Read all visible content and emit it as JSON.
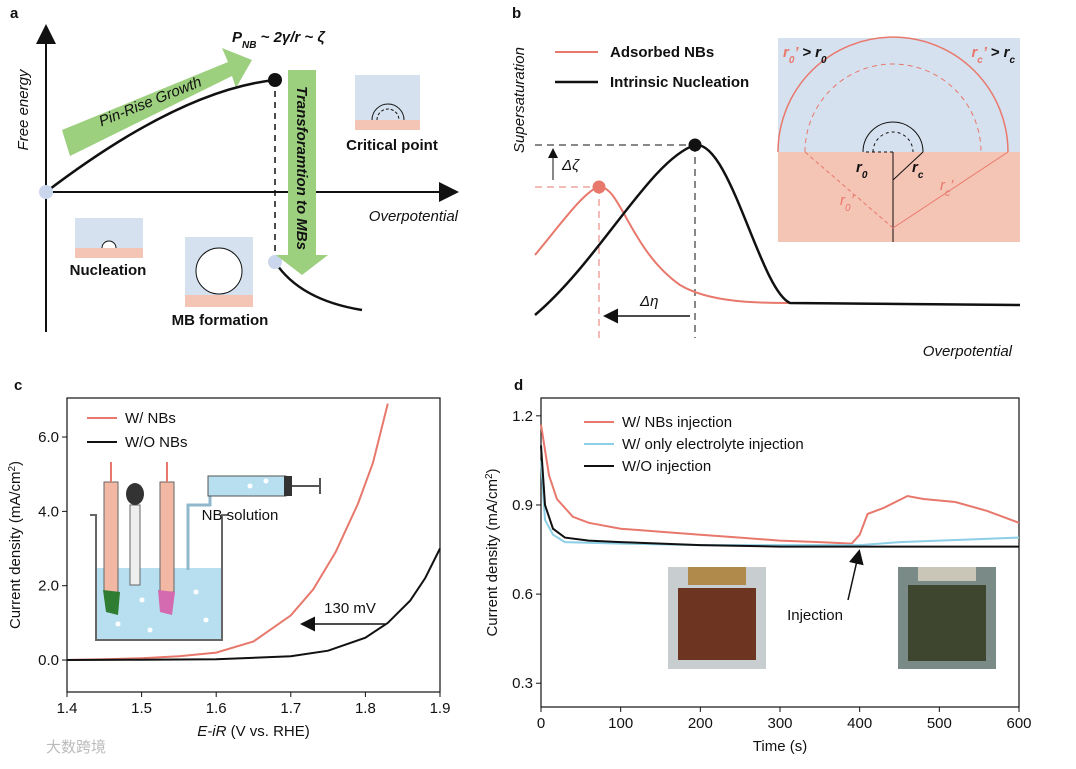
{
  "panel_a": {
    "label": "a",
    "y_axis_label": "Free energy",
    "x_axis_label": "Overpotential",
    "formula": [
      "P",
      "NB",
      " ~ 2γ/r ~ ζ"
    ],
    "growth_arrow": "Pin-Rise Growth",
    "transform_arrow": "Transforamtion to MBs",
    "insets": [
      "Critical point",
      "Nucleation",
      "MB formation"
    ]
  },
  "panel_b": {
    "label": "b",
    "y_axis_label": "Supersaturation",
    "x_axis_label": "Overpotential",
    "legend": [
      "Adsorbed  NBs",
      "Intrinsic Nucleation"
    ],
    "delta_zeta": "Δζ",
    "delta_eta": "Δη",
    "inset": {
      "r0_relation": [
        "r",
        "0",
        "’",
        " > ",
        "r",
        "0"
      ],
      "rc_relation": [
        "r",
        "c",
        "’",
        " > ",
        "r",
        "c"
      ],
      "r0": [
        "r",
        "0"
      ],
      "rc": [
        "r",
        "c"
      ],
      "r0_prime": [
        "r",
        "0",
        "’"
      ],
      "rc_prime": [
        "r",
        "c",
        "’"
      ]
    }
  },
  "watermark": "大数跨境",
  "chart_data": [
    {
      "type": "line",
      "label": "c",
      "x_label": [
        "E-iR",
        " (V vs. RHE)"
      ],
      "y_label": [
        "Current density (mA/cm",
        "2",
        ")"
      ],
      "xlim": [
        1.4,
        1.9
      ],
      "xticks": [
        1.4,
        1.5,
        1.6,
        1.7,
        1.8,
        1.9
      ],
      "ylim": [
        -0.86,
        7.05
      ],
      "yticks": [
        {
          "value": 0,
          "label": "0.0"
        },
        {
          "value": 2,
          "label": "2.0"
        },
        {
          "value": 4,
          "label": "4.0"
        },
        {
          "value": 6,
          "label": "6.0"
        }
      ],
      "series": [
        {
          "name": "W/ NBs",
          "color": "#e8786c",
          "x": [
            1.4,
            1.45,
            1.5,
            1.55,
            1.6,
            1.65,
            1.7,
            1.73,
            1.76,
            1.79,
            1.81,
            1.83
          ],
          "values": [
            0,
            0.02,
            0.05,
            0.1,
            0.2,
            0.5,
            1.2,
            1.9,
            2.9,
            4.2,
            5.3,
            6.9
          ]
        },
        {
          "name": "W/O NBs",
          "color": "#111111",
          "x": [
            1.4,
            1.5,
            1.6,
            1.7,
            1.75,
            1.8,
            1.83,
            1.86,
            1.88,
            1.9
          ],
          "values": [
            0,
            0.01,
            0.02,
            0.1,
            0.25,
            0.6,
            1.0,
            1.6,
            2.2,
            3.0
          ]
        }
      ],
      "annotations": [
        "130 mV",
        "NB solution"
      ]
    },
    {
      "type": "line",
      "label": "d",
      "x_label": [
        "Time (s)"
      ],
      "y_label": [
        "Current density (mA/cm",
        "2",
        ")"
      ],
      "xlim": [
        0,
        600
      ],
      "xticks": [
        0,
        100,
        200,
        300,
        400,
        500,
        600
      ],
      "ylim": [
        0.22,
        1.26
      ],
      "yticks": [
        0.3,
        0.6,
        0.9,
        1.2
      ],
      "series": [
        {
          "name": "W/ NBs injection",
          "color": "#e8786c",
          "x": [
            0,
            10,
            20,
            40,
            60,
            100,
            150,
            200,
            250,
            300,
            350,
            390,
            400,
            410,
            430,
            460,
            480,
            520,
            560,
            600
          ],
          "values": [
            1.17,
            1.0,
            0.92,
            0.86,
            0.84,
            0.82,
            0.81,
            0.8,
            0.79,
            0.78,
            0.775,
            0.77,
            0.8,
            0.87,
            0.89,
            0.93,
            0.92,
            0.91,
            0.88,
            0.84
          ]
        },
        {
          "name": "W/ only electrolyte injection",
          "color": "#8ccfe6",
          "x": [
            0,
            5,
            15,
            30,
            100,
            200,
            300,
            400,
            450,
            500,
            550,
            600
          ],
          "values": [
            1.05,
            0.85,
            0.8,
            0.775,
            0.77,
            0.765,
            0.765,
            0.765,
            0.775,
            0.78,
            0.785,
            0.79
          ]
        },
        {
          "name": "W/O injection",
          "color": "#111111",
          "x": [
            0,
            5,
            15,
            30,
            60,
            100,
            200,
            300,
            400,
            500,
            600
          ],
          "values": [
            1.1,
            0.9,
            0.82,
            0.79,
            0.78,
            0.775,
            0.765,
            0.76,
            0.76,
            0.76,
            0.76
          ]
        }
      ],
      "annotations": [
        "Injection"
      ]
    }
  ]
}
